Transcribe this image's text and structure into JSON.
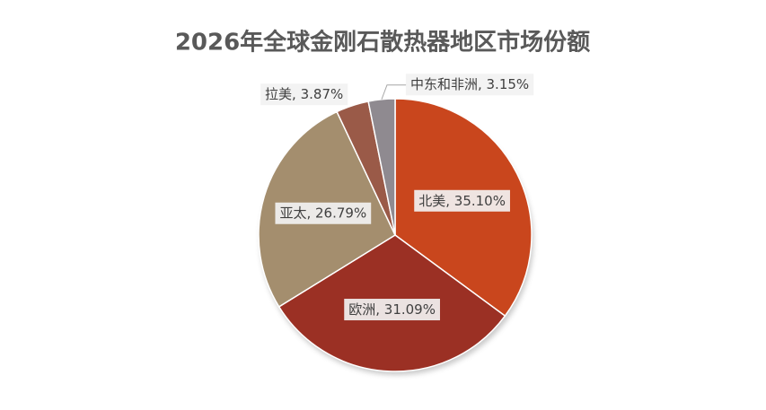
{
  "chart_data": {
    "type": "pie",
    "title": "2026年全球金刚石散热器地区市场份额",
    "values": [
      35.1,
      31.09,
      26.79,
      3.87,
      3.15
    ],
    "value_labels": [
      "北美, 35.10%",
      "欧洲, 31.09%",
      "亚太, 26.79%",
      "拉美, 3.87%",
      "中东和非洲, 3.15%"
    ],
    "colors": [
      "#c9461d",
      "#9b3024",
      "#a48e6e",
      "#9a5a48",
      "#8f8a90"
    ]
  }
}
